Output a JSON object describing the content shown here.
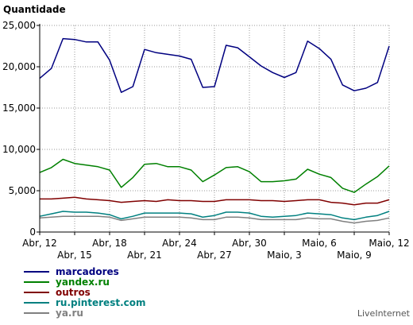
{
  "chart_data": {
    "type": "line",
    "ylabel": "Quantidade",
    "ylim": [
      0,
      25000
    ],
    "yticks": [
      0,
      5000,
      10000,
      15000,
      20000,
      25000
    ],
    "ytick_labels": [
      "0",
      "5,000",
      "10,000",
      "15,000",
      "20,000",
      "25,000"
    ],
    "x": [
      "Abr, 12",
      "Abr, 13",
      "Abr, 14",
      "Abr, 15",
      "Abr, 16",
      "Abr, 17",
      "Abr, 18",
      "Abr, 19",
      "Abr, 20",
      "Abr, 21",
      "Abr, 22",
      "Abr, 23",
      "Abr, 24",
      "Abr, 25",
      "Abr, 26",
      "Abr, 27",
      "Abr, 28",
      "Abr, 29",
      "Abr, 30",
      "Maio, 1",
      "Maio, 2",
      "Maio, 3",
      "Maio, 4",
      "Maio, 5",
      "Maio, 6",
      "Maio, 7",
      "Maio, 8",
      "Maio, 9",
      "Maio, 10",
      "Maio, 11",
      "Maio, 12"
    ],
    "xtick_labels": [
      {
        "index": 0,
        "label": "Abr, 12",
        "row": 1
      },
      {
        "index": 3,
        "label": "Abr, 15",
        "row": 2
      },
      {
        "index": 6,
        "label": "Abr, 18",
        "row": 1
      },
      {
        "index": 9,
        "label": "Abr, 21",
        "row": 2
      },
      {
        "index": 12,
        "label": "Abr, 24",
        "row": 1
      },
      {
        "index": 15,
        "label": "Abr, 27",
        "row": 2
      },
      {
        "index": 18,
        "label": "Abr, 30",
        "row": 1
      },
      {
        "index": 21,
        "label": "Maio, 3",
        "row": 2
      },
      {
        "index": 24,
        "label": "Maio, 6",
        "row": 1
      },
      {
        "index": 27,
        "label": "Maio, 9",
        "row": 2
      },
      {
        "index": 30,
        "label": "Maio, 12",
        "row": 1
      }
    ],
    "grid": true,
    "legend_position": "bottom-left",
    "series": [
      {
        "name": "marcadores",
        "color": "#000080",
        "values": [
          18600,
          19800,
          23400,
          23300,
          23000,
          23000,
          20800,
          16900,
          17600,
          22100,
          21700,
          21500,
          21300,
          20900,
          17500,
          17600,
          22600,
          22300,
          21200,
          20100,
          19300,
          18700,
          19300,
          23100,
          22200,
          20900,
          17800,
          17100,
          17400,
          18100,
          22500
        ]
      },
      {
        "name": "yandex.ru",
        "color": "#008000",
        "values": [
          7200,
          7800,
          8800,
          8300,
          8100,
          7900,
          7500,
          5400,
          6600,
          8200,
          8300,
          7900,
          7900,
          7500,
          6100,
          6900,
          7800,
          7900,
          7300,
          6100,
          6100,
          6200,
          6400,
          7600,
          7000,
          6600,
          5300,
          4800,
          5800,
          6700,
          8000
        ]
      },
      {
        "name": "outros",
        "color": "#800000",
        "values": [
          4000,
          4000,
          4100,
          4200,
          4000,
          3900,
          3800,
          3600,
          3700,
          3800,
          3700,
          3900,
          3800,
          3800,
          3700,
          3700,
          3900,
          3900,
          3900,
          3800,
          3800,
          3700,
          3800,
          3900,
          3900,
          3600,
          3500,
          3300,
          3500,
          3500,
          3900
        ]
      },
      {
        "name": "ru.pinterest.com",
        "color": "#008080",
        "values": [
          1900,
          2200,
          2500,
          2400,
          2400,
          2300,
          2100,
          1600,
          1900,
          2300,
          2300,
          2300,
          2300,
          2200,
          1800,
          2000,
          2400,
          2400,
          2300,
          1900,
          1800,
          1900,
          2000,
          2300,
          2200,
          2100,
          1700,
          1500,
          1800,
          2000,
          2500
        ]
      },
      {
        "name": "ya.ru",
        "color": "#808080",
        "values": [
          1700,
          1800,
          1900,
          1900,
          1900,
          1900,
          1800,
          1400,
          1600,
          1800,
          1800,
          1800,
          1800,
          1700,
          1500,
          1500,
          1800,
          1800,
          1700,
          1500,
          1500,
          1500,
          1500,
          1700,
          1600,
          1600,
          1300,
          1100,
          1300,
          1400,
          1700
        ]
      }
    ]
  },
  "branding": {
    "label": "LiveInternet"
  }
}
